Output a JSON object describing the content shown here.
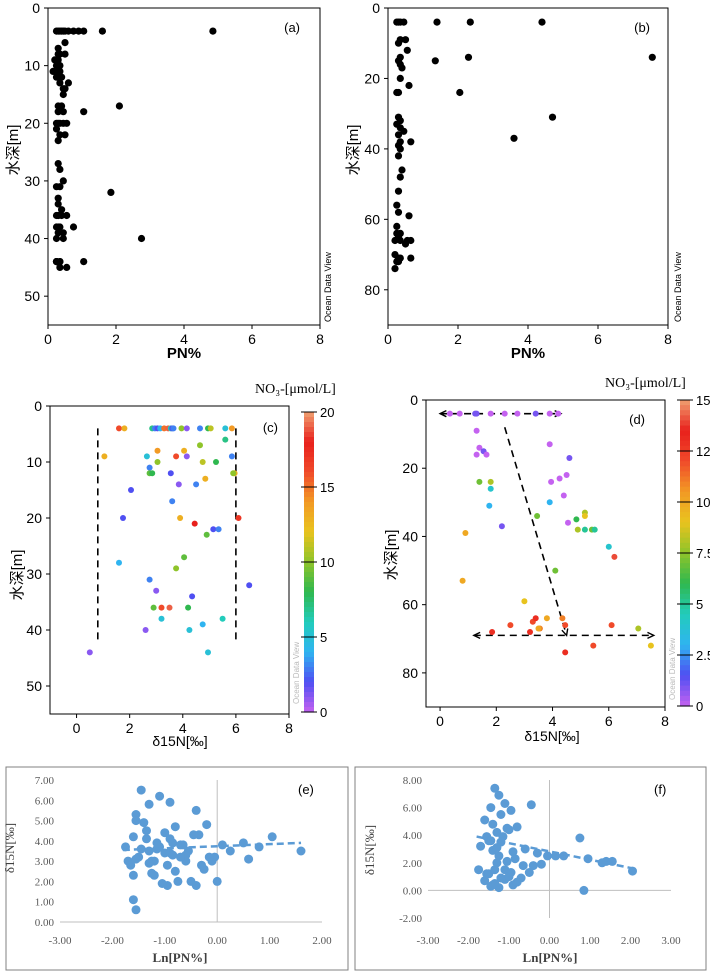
{
  "figure": {
    "colorbar_palette": [
      "#c462f0",
      "#4f4ff2",
      "#2fb4f0",
      "#22ccbb",
      "#2fb84f",
      "#8fc42a",
      "#e8c31e",
      "#f29a24",
      "#f04a2a",
      "#e8201c",
      "#f0a070"
    ]
  },
  "chart_data": [
    {
      "id": "a",
      "type": "scatter",
      "panel_label": "(a)",
      "xlabel": "PN%",
      "ylabel": "水深[m]",
      "xlim": [
        0,
        8
      ],
      "ylim": [
        55,
        0
      ],
      "xticks": [
        "0",
        "2",
        "4",
        "6",
        "8"
      ],
      "yticks": [
        "0",
        "10",
        "20",
        "30",
        "40",
        "50"
      ],
      "xtick_values": [
        0,
        2,
        4,
        6,
        8
      ],
      "ytick_values": [
        0,
        10,
        20,
        30,
        40,
        50
      ],
      "watermark": "Ocean Data View",
      "color": "#000000",
      "x": [
        0.25,
        0.3,
        0.35,
        0.4,
        0.45,
        0.5,
        0.6,
        0.75,
        0.9,
        1.05,
        1.6,
        4.85,
        0.5,
        0.3,
        0.3,
        0.35,
        0.2,
        0.25,
        0.3,
        0.35,
        0.25,
        0.3,
        0.5,
        0.35,
        0.6,
        0.45,
        0.4,
        0.3,
        0.3,
        0.45,
        1.05,
        0.3,
        0.25,
        0.35,
        0.45,
        0.55,
        0.25,
        0.35,
        0.5,
        0.3,
        2.1,
        0.15,
        0.3,
        0.4,
        0.25,
        0.35,
        0.45,
        0.5,
        0.3,
        0.35,
        0.45,
        0.25,
        0.35,
        0.3,
        0.3,
        0.4,
        0.3,
        0.25,
        0.4,
        0.3,
        1.85,
        0.3,
        0.25,
        0.35,
        0.45,
        0.55,
        0.3,
        0.25,
        0.75,
        0.45,
        0.25,
        0.35,
        0.25,
        0.35,
        2.75,
        0.25,
        0.35,
        1.05,
        0.55
      ],
      "y": [
        4,
        4,
        4,
        4,
        4,
        4,
        4,
        4,
        4,
        4,
        4,
        4,
        6,
        7,
        8,
        8,
        9,
        9,
        9,
        10,
        10,
        11,
        8,
        11,
        13,
        15,
        17,
        17,
        18,
        18,
        18,
        20,
        20,
        20,
        20,
        20,
        21,
        22,
        22,
        23,
        17,
        11,
        12,
        12,
        12,
        13,
        14,
        14,
        27,
        28,
        30,
        31,
        31,
        33,
        34,
        35,
        36,
        36,
        36,
        36,
        32,
        38,
        38,
        38,
        39,
        36,
        39,
        40,
        38,
        40,
        44,
        44,
        44,
        45,
        40,
        44,
        44,
        44,
        45
      ]
    },
    {
      "id": "b",
      "type": "scatter",
      "panel_label": "(b)",
      "xlabel": "PN%",
      "ylabel": "水深[m]",
      "xlim": [
        0,
        8
      ],
      "ylim": [
        90,
        0
      ],
      "xticks": [
        "0",
        "2",
        "4",
        "6",
        "8"
      ],
      "yticks": [
        "0",
        "20",
        "40",
        "60",
        "80"
      ],
      "xtick_values": [
        0,
        2,
        4,
        6,
        8
      ],
      "ytick_values": [
        0,
        20,
        40,
        60,
        80
      ],
      "watermark": "Ocean Data View",
      "color": "#000000",
      "x": [
        0.25,
        0.3,
        0.35,
        0.45,
        1.4,
        2.35,
        4.4,
        0.35,
        0.5,
        0.3,
        0.55,
        0.35,
        0.3,
        1.35,
        2.3,
        0.35,
        0.4,
        7.55,
        0.35,
        0.6,
        0.3,
        0.25,
        2.05,
        0.3,
        0.35,
        0.25,
        0.35,
        0.45,
        0.3,
        0.35,
        4.7,
        0.3,
        0.35,
        0.3,
        3.6,
        0.65,
        0.4,
        0.35,
        0.3,
        0.25,
        0.3,
        0.25,
        0.35,
        0.6,
        0.3,
        0.25,
        0.2,
        0.35,
        0.55,
        0.5,
        0.65,
        0.2,
        0.3,
        0.35,
        0.65,
        0.25,
        0.3,
        0.2
      ],
      "y": [
        4,
        4,
        4,
        4,
        4,
        4,
        4,
        9,
        9,
        10,
        12,
        14,
        15,
        15,
        14,
        16,
        17,
        14,
        20,
        22,
        24,
        24,
        24,
        31,
        32,
        33,
        34,
        35,
        36,
        38,
        31,
        39,
        40,
        42,
        37,
        38,
        46,
        48,
        52,
        56,
        58,
        62,
        64,
        59,
        65,
        64,
        66,
        66,
        66,
        67,
        66,
        70,
        71,
        71,
        71,
        72,
        72,
        74
      ]
    },
    {
      "id": "c",
      "type": "scatter",
      "panel_label": "(c)",
      "xlabel": "δ15N[‰]",
      "ylabel": "水深[m]",
      "xlim": [
        -1,
        8
      ],
      "ylim": [
        55,
        0
      ],
      "xticks": [
        "0",
        "2",
        "4",
        "6",
        "8"
      ],
      "yticks": [
        "0",
        "10",
        "20",
        "30",
        "40",
        "50"
      ],
      "xtick_values": [
        0,
        2,
        4,
        6,
        8
      ],
      "ytick_values": [
        0,
        10,
        20,
        30,
        40,
        50
      ],
      "watermark": "Ocean Data View",
      "colorbar": {
        "title": "NO₃-[μmol/L]",
        "min": 0,
        "max": 20,
        "ticks": [
          "0",
          "5",
          "10",
          "15",
          "20"
        ],
        "tick_values": [
          0,
          5,
          10,
          15,
          20
        ]
      },
      "reference_lines": [
        {
          "x": 0.8,
          "y_from": 4,
          "y_to": 42
        },
        {
          "x": 6.0,
          "y_from": 4,
          "y_to": 42
        }
      ],
      "x": [
        1.6,
        1.8,
        2.85,
        2.95,
        3.05,
        3.15,
        3.3,
        3.45,
        3.55,
        3.6,
        3.65,
        3.95,
        4.15,
        4.65,
        4.95,
        5.05,
        5.6,
        5.85,
        1.05,
        2.65,
        2.75,
        3.05,
        3.75,
        4.15,
        4.65,
        5.6,
        5.85,
        5.95,
        2.75,
        2.85,
        3.05,
        3.55,
        4.05,
        4.75,
        5.25,
        5.9,
        3.85,
        4.5,
        4.85,
        2.05,
        1.75,
        3.6,
        3.9,
        4.45,
        4.9,
        6.1,
        5.15,
        5.35,
        1.6,
        4.05,
        3.75,
        2.75,
        3.0,
        6.5,
        4.35,
        2.9,
        3.2,
        3.5,
        4.2,
        5.5,
        2.6,
        3.2,
        4.25,
        4.75,
        0.5,
        4.95
      ],
      "y": [
        4,
        4,
        4,
        4,
        4,
        4,
        4,
        4,
        4,
        4,
        4,
        4,
        4,
        4,
        4,
        4,
        4,
        4,
        9,
        9,
        11,
        8,
        9,
        9,
        7,
        6,
        9,
        12,
        12,
        12,
        10,
        12,
        8,
        10,
        10,
        12,
        14,
        14,
        13,
        15,
        20,
        17,
        20,
        21,
        23,
        20,
        22,
        22,
        28,
        27,
        29,
        31,
        33,
        32,
        34,
        36,
        36,
        36,
        36,
        38,
        40,
        38,
        40,
        39,
        44,
        44
      ],
      "values": [
        16,
        13,
        7,
        3,
        2,
        4,
        15,
        19,
        6,
        2,
        3,
        10,
        1,
        3,
        8,
        11,
        5,
        14,
        13,
        5,
        3,
        14,
        16,
        1,
        10,
        7,
        3,
        13,
        9,
        8,
        10,
        2,
        13,
        11,
        8,
        10,
        1,
        3,
        13,
        2,
        2,
        3,
        13,
        18,
        9,
        17,
        2,
        3,
        4,
        9,
        10,
        3,
        1,
        2,
        2,
        9,
        16,
        19,
        8,
        6,
        1,
        5,
        5,
        4,
        1,
        5
      ]
    },
    {
      "id": "d",
      "type": "scatter",
      "panel_label": "(d)",
      "xlabel": "δ15N[‰]",
      "ylabel": "水深[m]",
      "xlim": [
        -0.5,
        8
      ],
      "ylim": [
        90,
        0
      ],
      "xticks": [
        "0",
        "2",
        "4",
        "6",
        "8"
      ],
      "yticks": [
        "0",
        "20",
        "40",
        "60",
        "80"
      ],
      "xtick_values": [
        0,
        2,
        4,
        6,
        8
      ],
      "ytick_values": [
        0,
        20,
        40,
        60,
        80
      ],
      "watermark": "Ocean Data View",
      "colorbar": {
        "title": "NO₃-[μmol/L]",
        "min": 0,
        "max": 15,
        "ticks": [
          "0",
          "2.5",
          "5",
          "7.5",
          "10",
          "12.5",
          "15"
        ],
        "tick_values": [
          0,
          2.5,
          5,
          7.5,
          10,
          12.5,
          15
        ]
      },
      "reference_lines": [
        {
          "x1": 0,
          "y1": 4,
          "x2": 4.3,
          "y2": 4,
          "arrows": "both"
        },
        {
          "x1": 2.3,
          "y1": 8,
          "x2": 4.5,
          "y2": 69,
          "arrows": "end"
        },
        {
          "x1": 1.2,
          "y1": 69,
          "x2": 7.6,
          "y2": 69,
          "arrows": "both"
        }
      ],
      "x": [
        0.35,
        0.7,
        1.25,
        1.3,
        1.8,
        2.3,
        2.75,
        3.4,
        3.9,
        4.2,
        1.3,
        1.4,
        1.55,
        1.3,
        1.65,
        1.8,
        3.9,
        4.25,
        4.5,
        4.6,
        3.95,
        4.4,
        1.4,
        1.8,
        5.15,
        1.75,
        2.2,
        3.45,
        3.9,
        4.55,
        4.85,
        5.15,
        4.9,
        5.4,
        5.5,
        5.15,
        6.0,
        6.2,
        0.9,
        0.8,
        4.1,
        3.0,
        3.3,
        3.55,
        3.8,
        4.35,
        3.4,
        3.2,
        6.1,
        7.05,
        7.5,
        4.45,
        3.5,
        5.45,
        4.45,
        1.85,
        2.5
      ],
      "y": [
        4,
        4,
        4,
        4,
        4,
        4,
        4,
        4,
        4,
        4,
        9,
        14,
        15,
        16,
        16,
        24,
        13,
        23,
        22,
        17,
        24,
        28,
        24,
        26,
        33,
        31,
        37,
        34,
        30,
        36,
        35,
        34,
        38,
        38,
        38,
        38,
        43,
        46,
        39,
        53,
        50,
        59,
        65,
        67,
        64,
        64,
        64,
        68,
        66,
        67,
        72,
        66,
        67,
        72,
        74,
        68,
        66
      ],
      "values": [
        0,
        0,
        1,
        1,
        0,
        0,
        0,
        1,
        0,
        0,
        0,
        0,
        1,
        0,
        0,
        8,
        0,
        0,
        0,
        1,
        0,
        0,
        7,
        4,
        8,
        3,
        1,
        7,
        3,
        0,
        6,
        9,
        8,
        7,
        5,
        5,
        4,
        14,
        10,
        10,
        7,
        9,
        12,
        11,
        10,
        11,
        13,
        13,
        12,
        8,
        9,
        12,
        10,
        12,
        13,
        13,
        12
      ]
    },
    {
      "id": "e",
      "type": "scatter",
      "panel_label": "(e)",
      "xlabel": "Ln[PN%]",
      "ylabel": "δ15N[‰]",
      "xlim": [
        -3,
        2
      ],
      "ylim": [
        0,
        7
      ],
      "xticks": [
        "-3.00",
        "-2.00",
        "-1.00",
        "0.00",
        "1.00",
        "2.00"
      ],
      "yticks": [
        "0.00",
        "1.00",
        "2.00",
        "3.00",
        "4.00",
        "5.00",
        "6.00",
        "7.00"
      ],
      "xtick_values": [
        -3,
        -2,
        -1,
        0,
        1,
        2
      ],
      "ytick_values": [
        0,
        1,
        2,
        3,
        4,
        5,
        6,
        7
      ],
      "color": "#5b9bd5",
      "trendline": {
        "x": [
          -1.8,
          1.6
        ],
        "y": [
          3.55,
          3.9
        ]
      },
      "x": [
        -1.6,
        -1.55,
        -1.45,
        -1.4,
        -1.3,
        -1.2,
        -1.1,
        -1.0,
        -0.9,
        -0.8,
        -0.6,
        -0.4,
        -0.2,
        -1.7,
        -1.5,
        -1.3,
        -1.15,
        -1.0,
        -0.85,
        -0.7,
        -0.55,
        -0.35,
        -0.1,
        0.1,
        0.5,
        0.8,
        -1.75,
        -1.65,
        -1.35,
        -1.25,
        -1.1,
        -0.95,
        -0.75,
        -0.6,
        -0.45,
        -0.25,
        -0.05,
        0.25,
        0.6,
        1.05,
        -1.6,
        -1.45,
        -1.2,
        -0.95,
        -0.8,
        -0.5,
        -0.3,
        0.0,
        1.6,
        -1.55,
        -1.35,
        -1.15,
        -0.9,
        -0.7,
        -0.4,
        -0.15,
        -1.6,
        -1.3,
        -1.05,
        -0.85,
        -0.65,
        -1.55,
        -1.25,
        -0.9,
        -1.55
      ],
      "y": [
        2.3,
        5.3,
        6.5,
        4.9,
        5.8,
        3.0,
        6.2,
        4.4,
        5.9,
        4.7,
        3.3,
        5.5,
        4.8,
        3.0,
        3.2,
        3.5,
        3.6,
        3.4,
        3.9,
        3.8,
        3.5,
        4.3,
        3.0,
        3.8,
        3.9,
        3.7,
        3.7,
        2.8,
        4.1,
        3.0,
        3.7,
        2.8,
        2.0,
        3.0,
        4.3,
        2.6,
        3.2,
        3.5,
        3.1,
        4.2,
        4.2,
        3.6,
        2.3,
        1.8,
        2.5,
        2.0,
        2.8,
        2.0,
        3.5,
        5.0,
        4.5,
        3.9,
        3.4,
        3.2,
        1.8,
        3.2,
        1.1,
        2.9,
        1.9,
        3.3,
        3.8,
        0.6,
        2.4,
        4.1,
        3.1
      ]
    },
    {
      "id": "f",
      "type": "scatter",
      "panel_label": "(f)",
      "xlabel": "Ln[PN%]",
      "ylabel": "δ15N[‰]",
      "xlim": [
        -3,
        3
      ],
      "ylim": [
        -2,
        8
      ],
      "xticks": [
        "-3.00",
        "-2.00",
        "-1.00",
        "0.00",
        "1.00",
        "2.00",
        "3.00"
      ],
      "yticks": [
        "-2.00",
        "0.00",
        "2.00",
        "4.00",
        "6.00",
        "8.00"
      ],
      "xtick_values": [
        -3,
        -2,
        -1,
        0,
        1,
        2,
        3
      ],
      "ytick_values": [
        -2,
        0,
        2,
        4,
        6,
        8
      ],
      "color": "#5b9bd5",
      "trendline": {
        "x": [
          -1.8,
          2.05
        ],
        "y": [
          3.9,
          1.6
        ]
      },
      "x": [
        -1.35,
        -1.25,
        -1.45,
        -1.1,
        -0.95,
        -1.2,
        -1.6,
        -1.4,
        -1.0,
        -0.8,
        -0.45,
        -1.3,
        -1.15,
        -1.05,
        -1.5,
        -1.7,
        -1.55,
        -1.2,
        -0.9,
        -0.6,
        -0.3,
        -1.4,
        -1.25,
        -1.05,
        -0.85,
        -0.65,
        -1.75,
        -1.5,
        -1.3,
        -1.1,
        -0.95,
        -0.7,
        -0.4,
        -1.6,
        -1.35,
        -1.2,
        -0.9,
        -0.5,
        -0.2,
        -1.45,
        -1.3,
        -1.1,
        -1.55,
        -1.35,
        -1.0,
        -0.8,
        -1.45,
        -1.25,
        -1.4,
        0.75,
        0.95,
        1.4,
        1.55,
        2.05,
        1.3,
        0.35,
        0.15,
        -0.05,
        0.85
      ],
      "y": [
        7.4,
        6.9,
        6.0,
        6.3,
        5.8,
        5.5,
        5.1,
        4.8,
        4.4,
        4.6,
        6.2,
        4.2,
        3.9,
        4.5,
        3.6,
        3.2,
        3.9,
        3.5,
        2.8,
        3.0,
        2.7,
        2.9,
        2.5,
        2.1,
        2.3,
        1.8,
        1.5,
        1.2,
        2.0,
        1.5,
        1.3,
        0.9,
        1.8,
        0.7,
        0.5,
        0.9,
        0.4,
        1.3,
        1.9,
        3.6,
        3.1,
        0.8,
        1.2,
        1.5,
        1.0,
        0.6,
        0.3,
        0.2,
        0.4,
        3.8,
        2.3,
        2.1,
        2.1,
        1.4,
        2.0,
        2.5,
        2.5,
        2.5,
        0.0
      ]
    }
  ]
}
